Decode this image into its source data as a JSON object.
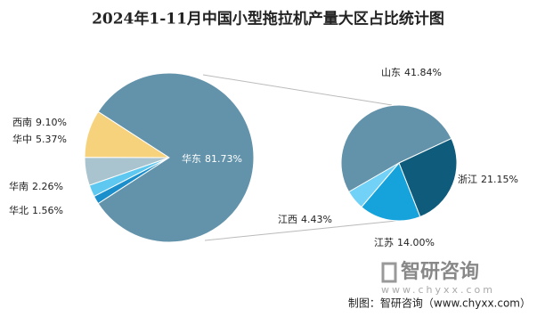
{
  "chart_data": {
    "type": "pie-of-pie",
    "title": "2024年1-11月中国小型拖拉机产量大区占比统计图",
    "categories": [
      "华东",
      "西南",
      "华中",
      "华南",
      "华北"
    ],
    "values": [
      81.73,
      9.1,
      5.37,
      2.26,
      1.56
    ],
    "value_labels": [
      "81.73%",
      "9.10%",
      "5.37%",
      "2.26%",
      "1.56%"
    ],
    "colors": [
      "#6393aa",
      "#f6d27c",
      "#a9c3cf",
      "#5ec8f0",
      "#1b8fcc"
    ],
    "sub_pie": {
      "categories": [
        "山东",
        "浙江",
        "江苏",
        "江西"
      ],
      "values": [
        41.84,
        21.15,
        14.0,
        4.43
      ],
      "value_labels": [
        "41.84%",
        "21.15%",
        "14.00%",
        "4.43%"
      ],
      "colors": [
        "#6393aa",
        "#0f5b7b",
        "#16a3dc",
        "#72d1f6"
      ]
    }
  },
  "watermark": {
    "name": "智研咨询",
    "url": "www.chyxx.com"
  },
  "footer": "制图：智研咨询（www.chyxx.com）"
}
